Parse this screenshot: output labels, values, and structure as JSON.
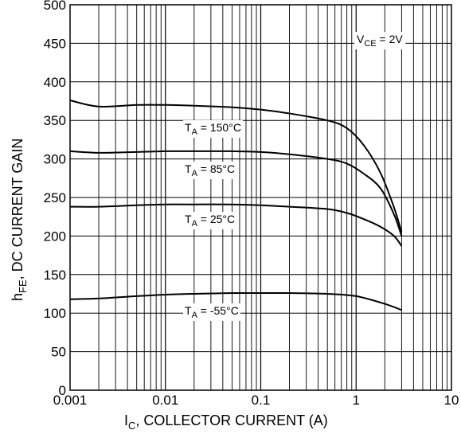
{
  "chart_data": {
    "type": "line",
    "x_scale": "log",
    "xlim": [
      0.001,
      10
    ],
    "ylim": [
      0,
      500
    ],
    "grid": true,
    "xlabel": {
      "main": "I",
      "sub": "C",
      "rest": ", COLLECTOR CURRENT (A)"
    },
    "ylabel": {
      "main": "h",
      "sub": "FE",
      "rest": ", DC CURRENT GAIN"
    },
    "x_ticks": [
      {
        "value": 0.001,
        "label": "0.001"
      },
      {
        "value": 0.01,
        "label": "0.01"
      },
      {
        "value": 0.1,
        "label": "0.1"
      },
      {
        "value": 1,
        "label": "1"
      },
      {
        "value": 10,
        "label": "10"
      }
    ],
    "y_ticks": [
      {
        "value": 0,
        "label": "0"
      },
      {
        "value": 50,
        "label": "50"
      },
      {
        "value": 100,
        "label": "100"
      },
      {
        "value": 150,
        "label": "150"
      },
      {
        "value": 200,
        "label": "200"
      },
      {
        "value": 250,
        "label": "250"
      },
      {
        "value": 300,
        "label": "300"
      },
      {
        "value": 350,
        "label": "350"
      },
      {
        "value": 400,
        "label": "400"
      },
      {
        "value": 450,
        "label": "450"
      },
      {
        "value": 500,
        "label": "500"
      }
    ],
    "annotation": {
      "main": "V",
      "sub": "CE",
      "rest": " = 2V"
    },
    "series": [
      {
        "label": {
          "main": "T",
          "sub": "A",
          "rest": " = 150°C"
        },
        "x": [
          0.001,
          0.002,
          0.005,
          0.01,
          0.02,
          0.05,
          0.1,
          0.2,
          0.5,
          0.8,
          1.2,
          1.8,
          2.5,
          3.0
        ],
        "y": [
          376,
          368,
          370,
          370,
          369,
          367,
          364,
          359,
          350,
          340,
          318,
          282,
          237,
          205
        ]
      },
      {
        "label": {
          "main": "T",
          "sub": "A",
          "rest": " = 85°C"
        },
        "x": [
          0.001,
          0.002,
          0.005,
          0.01,
          0.02,
          0.05,
          0.1,
          0.2,
          0.5,
          0.8,
          1.2,
          1.8,
          2.5,
          3.0
        ],
        "y": [
          310,
          308,
          309,
          310,
          310,
          310,
          309,
          306,
          300,
          294,
          281,
          262,
          228,
          200
        ]
      },
      {
        "label": {
          "main": "T",
          "sub": "A",
          "rest": " = 25°C"
        },
        "x": [
          0.001,
          0.002,
          0.005,
          0.01,
          0.02,
          0.05,
          0.1,
          0.2,
          0.5,
          0.8,
          1.2,
          1.8,
          2.5,
          3.0
        ],
        "y": [
          238,
          238,
          240,
          241,
          241,
          241,
          240,
          238,
          235,
          230,
          222,
          212,
          200,
          187
        ]
      },
      {
        "label": {
          "main": "T",
          "sub": "A",
          "rest": " = -55°C"
        },
        "x": [
          0.001,
          0.002,
          0.005,
          0.01,
          0.02,
          0.05,
          0.1,
          0.2,
          0.5,
          1.0,
          2.0,
          3.0
        ],
        "y": [
          118,
          119,
          122,
          124,
          125,
          126,
          126,
          126,
          125,
          122,
          112,
          104
        ]
      }
    ]
  }
}
